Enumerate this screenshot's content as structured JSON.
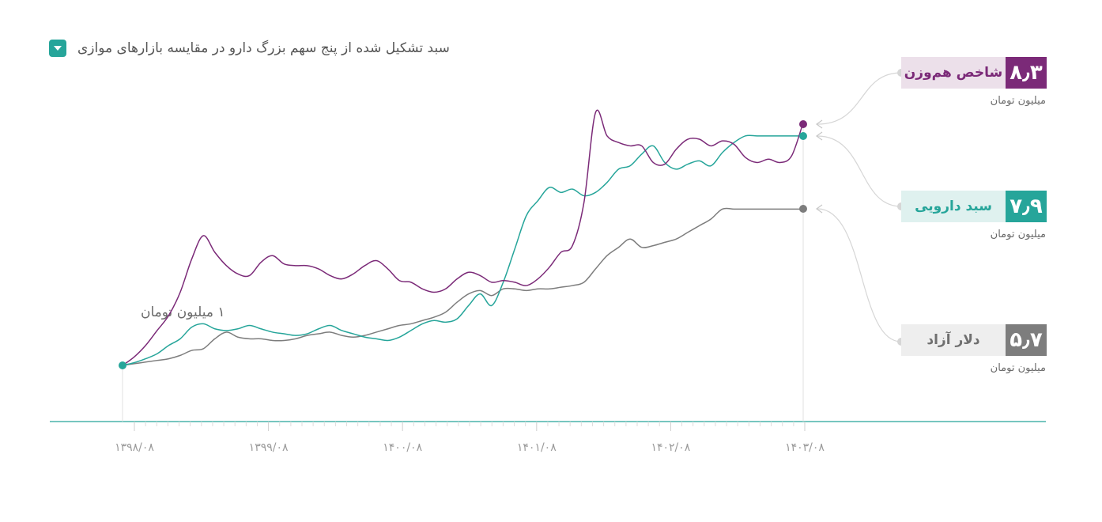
{
  "title": "سبد تشکیل شده از پنج سهم بزرگ دارو در مقایسه بازارهای موازی",
  "start_label": "۱ میلیون تومان",
  "colors": {
    "equal_weight": "#7b2a78",
    "pharma": "#26a59a",
    "dollar": "#7d7d7d",
    "axis": "#26a59a"
  },
  "chart_data": {
    "type": "line",
    "x_ticks": [
      "۱۳۹۸/۰۸",
      "۱۳۹۹/۰۸",
      "۱۴۰۰/۰۸",
      "۱۴۰۱/۰۸",
      "۱۴۰۲/۰۸",
      "۱۴۰۳/۰۸"
    ],
    "start_value": 1,
    "series": [
      {
        "name": "شاخص هم‌وزن",
        "key": "equal_weight",
        "final_value": "۸٫۳",
        "unit": "میلیون تومان",
        "values": [
          1,
          1.25,
          1.6,
          2.05,
          2.5,
          3.2,
          4.2,
          4.9,
          4.4,
          4.0,
          3.75,
          3.7,
          4.1,
          4.3,
          4.05,
          4.0,
          4.0,
          3.9,
          3.7,
          3.6,
          3.75,
          4.0,
          4.15,
          3.9,
          3.55,
          3.5,
          3.3,
          3.2,
          3.3,
          3.6,
          3.8,
          3.7,
          3.5,
          3.55,
          3.5,
          3.4,
          3.6,
          3.95,
          4.4,
          4.6,
          5.9,
          8.6,
          7.9,
          7.7,
          7.6,
          7.6,
          7.1,
          7.05,
          7.5,
          7.8,
          7.8,
          7.6,
          7.75,
          7.65,
          7.25,
          7.1,
          7.2,
          7.1,
          7.3,
          8.3
        ]
      },
      {
        "name": "سبد دارویی",
        "key": "pharma",
        "final_value": "۷٫۹",
        "unit": "میلیون تومان",
        "values": [
          1,
          1.08,
          1.2,
          1.35,
          1.6,
          1.8,
          2.15,
          2.25,
          2.1,
          2.05,
          2.1,
          2.2,
          2.1,
          2.0,
          1.95,
          1.9,
          1.95,
          2.1,
          2.2,
          2.05,
          1.95,
          1.85,
          1.8,
          1.75,
          1.85,
          2.05,
          2.25,
          2.35,
          2.3,
          2.4,
          2.8,
          3.15,
          2.8,
          3.5,
          4.5,
          5.5,
          5.95,
          6.35,
          6.2,
          6.3,
          6.1,
          6.2,
          6.5,
          6.9,
          7.0,
          7.35,
          7.6,
          7.1,
          6.9,
          7.05,
          7.15,
          7.0,
          7.4,
          7.7,
          7.9,
          7.9,
          7.9,
          7.9,
          7.9,
          7.9
        ]
      },
      {
        "name": "دلار آزاد",
        "key": "dollar",
        "final_value": "۵٫۷",
        "unit": "میلیون تومان",
        "values": [
          1,
          1.05,
          1.1,
          1.15,
          1.2,
          1.3,
          1.45,
          1.5,
          1.8,
          2.0,
          1.85,
          1.8,
          1.8,
          1.75,
          1.75,
          1.8,
          1.9,
          1.95,
          2.0,
          1.9,
          1.85,
          1.9,
          2.0,
          2.1,
          2.2,
          2.25,
          2.35,
          2.45,
          2.6,
          2.9,
          3.15,
          3.25,
          3.1,
          3.3,
          3.3,
          3.25,
          3.3,
          3.3,
          3.35,
          3.4,
          3.5,
          3.9,
          4.3,
          4.55,
          4.8,
          4.55,
          4.6,
          4.7,
          4.8,
          5.0,
          5.2,
          5.4,
          5.7,
          5.7,
          5.7,
          5.7,
          5.7,
          5.7,
          5.7,
          5.7
        ]
      }
    ]
  }
}
